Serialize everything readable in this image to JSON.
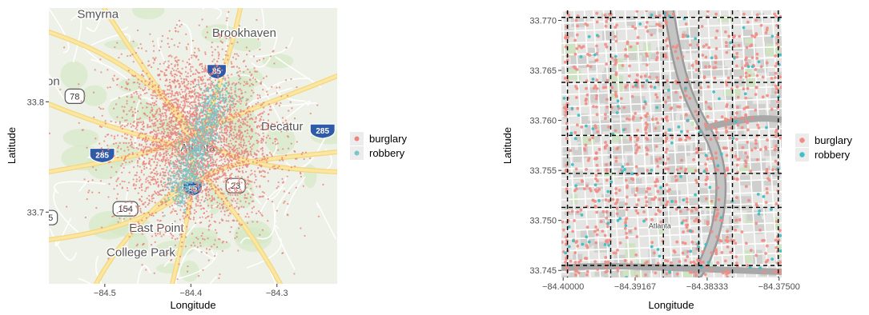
{
  "chart_data": [
    {
      "type": "scatter",
      "background": "map",
      "xlabel": "Longitude",
      "ylabel": "Latitude",
      "xlim": [
        -84.565,
        -84.23
      ],
      "ylim": [
        33.635,
        33.885
      ],
      "xticks": [
        {
          "value": -84.5,
          "label": "−84.5"
        },
        {
          "value": -84.4,
          "label": "−84.4"
        },
        {
          "value": -84.3,
          "label": "−84.3"
        }
      ],
      "yticks": [
        {
          "value": 33.7,
          "label": "33.7"
        },
        {
          "value": 33.8,
          "label": "33.8"
        }
      ],
      "map_labels": [
        {
          "text": "Smyrna",
          "lon": -84.508,
          "lat": 33.876
        },
        {
          "text": "Brookhaven",
          "lon": -84.338,
          "lat": 33.859
        },
        {
          "text": "on",
          "lon": -84.56,
          "lat": 33.815
        },
        {
          "text": "Decatur",
          "lon": -84.294,
          "lat": 33.774
        },
        {
          "text": "East Point",
          "lon": -84.44,
          "lat": 33.682
        },
        {
          "text": "College Park",
          "lon": -84.458,
          "lat": 33.66
        },
        {
          "text": "Atlanta",
          "lon": -84.392,
          "lat": 33.755
        }
      ],
      "highway_shields": [
        {
          "text": "78",
          "lon": -84.535,
          "lat": 33.805,
          "kind": "us"
        },
        {
          "text": "85",
          "lon": -84.37,
          "lat": 33.828,
          "kind": "interstate"
        },
        {
          "text": "285",
          "lon": -84.247,
          "lat": 33.774,
          "kind": "interstate"
        },
        {
          "text": "285",
          "lon": -84.503,
          "lat": 33.752,
          "kind": "interstate"
        },
        {
          "text": "23",
          "lon": -84.348,
          "lat": 33.724,
          "kind": "us"
        },
        {
          "text": "154",
          "lon": -84.476,
          "lat": 33.703,
          "kind": "us"
        },
        {
          "text": "85",
          "lon": -84.398,
          "lat": 33.722,
          "kind": "interstate"
        },
        {
          "text": "5",
          "lon": -84.563,
          "lat": 33.695,
          "kind": "us"
        }
      ],
      "series": [
        {
          "name": "burglary",
          "color": "#E8877C"
        },
        {
          "name": "robbery",
          "color": "#7BC5C4"
        }
      ],
      "legend": "right"
    },
    {
      "type": "scatter",
      "background": "map",
      "grid_overlay": "dashed",
      "xlabel": "Longitude",
      "ylabel": "Latitude",
      "xlim": [
        -84.4002,
        -84.3747
      ],
      "ylim": [
        33.7443,
        33.771
      ],
      "xticks": [
        {
          "value": -84.4,
          "label": "−84.40000"
        },
        {
          "value": -84.39167,
          "label": "−84.39167"
        },
        {
          "value": -84.38333,
          "label": "−84.38333"
        },
        {
          "value": -84.375,
          "label": "−84.37500"
        }
      ],
      "yticks": [
        {
          "value": 33.745,
          "label": "33.745"
        },
        {
          "value": 33.75,
          "label": "33.750"
        },
        {
          "value": 33.755,
          "label": "33.755"
        },
        {
          "value": 33.76,
          "label": "33.760"
        },
        {
          "value": 33.765,
          "label": "33.765"
        },
        {
          "value": 33.77,
          "label": "33.770"
        }
      ],
      "grid_lines_x": [
        -84.3995,
        -84.3945,
        -84.3884,
        -84.3843,
        -84.3804,
        -84.3751
      ],
      "grid_lines_y": [
        33.7455,
        33.7513,
        33.7547,
        33.7585,
        33.7638,
        33.7703
      ],
      "map_labels": [
        {
          "text": "Atlanta",
          "lon": -84.3888,
          "lat": 33.7492
        }
      ],
      "series": [
        {
          "name": "burglary",
          "color": "#F08C84"
        },
        {
          "name": "robbery",
          "color": "#3FBFC4"
        }
      ],
      "legend": "right"
    }
  ]
}
